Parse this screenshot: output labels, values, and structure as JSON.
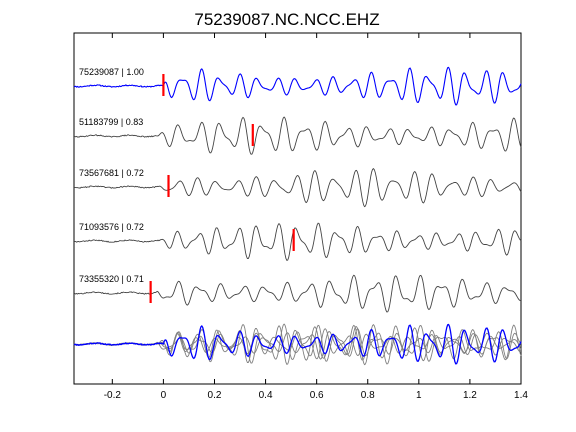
{
  "chart_data": {
    "type": "line",
    "title": "75239087.NC.NCC.EHZ",
    "xlabel": "",
    "ylabel": "",
    "xlim": [
      -0.35,
      1.4
    ],
    "x_ticks": [
      -0.2,
      0,
      0.2,
      0.4,
      0.6,
      0.8,
      1,
      1.2,
      1.4
    ],
    "x_tick_labels": [
      "-0.2",
      "0",
      "0.2",
      "0.4",
      "0.6",
      "0.8",
      "1",
      "1.2",
      "1.4"
    ],
    "grid": false,
    "colors": {
      "reference": "#0000ff",
      "other": "#444444",
      "overlay_other": "#808080",
      "pick": "#ff0000",
      "axes": "#000000"
    },
    "traces": [
      {
        "label": "75239087 | 1.00",
        "event_id": "75239087",
        "correlation": 1.0,
        "pick_time": 0.0,
        "reference": true
      },
      {
        "label": "51183799 | 0.83",
        "event_id": "51183799",
        "correlation": 0.83,
        "pick_time": 0.35,
        "reference": false
      },
      {
        "label": "73567681 | 0.72",
        "event_id": "73567681",
        "correlation": 0.72,
        "pick_time": 0.02,
        "reference": false
      },
      {
        "label": "71093576 | 0.72",
        "event_id": "71093576",
        "correlation": 0.72,
        "pick_time": 0.51,
        "reference": false
      },
      {
        "label": "73355320 | 0.71",
        "event_id": "73355320",
        "correlation": 0.71,
        "pick_time": -0.05,
        "reference": false
      }
    ],
    "overlay": {
      "description_visible": false,
      "series_count": 5
    }
  }
}
